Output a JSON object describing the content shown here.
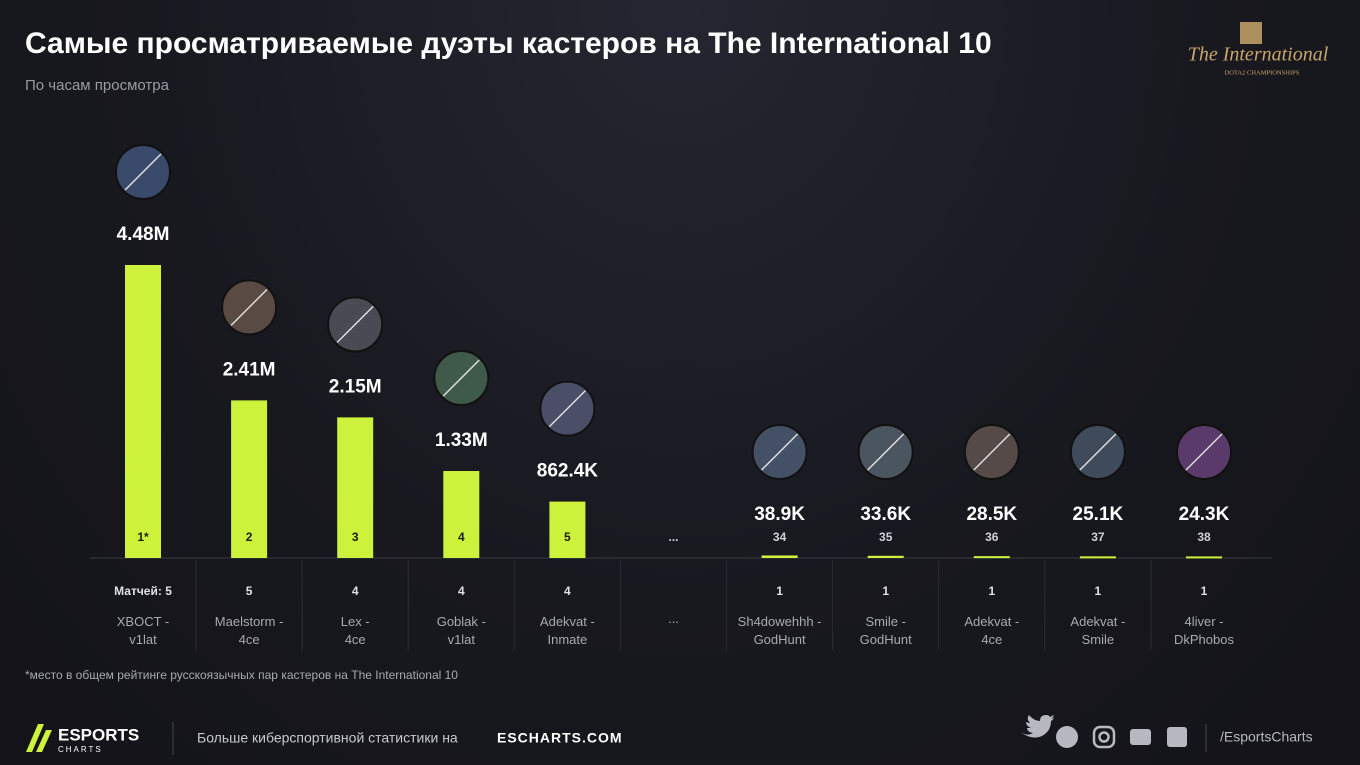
{
  "header": {
    "title": "Самые просматриваемые дуэты кастеров на The International 10",
    "subtitle": "По часам просмотра",
    "logo_title": "The International",
    "logo_subtitle": "DOTA2 CHAMPIONSHIPS"
  },
  "chart_data": {
    "type": "bar",
    "categories": [
      "XBOCT -\nv1lat",
      "Maelstorm -\n4ce",
      "Lex -\n4ce",
      "Goblak -\nv1lat",
      "Adekvat -\nInmate",
      "...",
      "Sh4dowehhh -\nGodHunt",
      "Smile -\nGodHunt",
      "Adekvat -\n4ce",
      "Adekvat -\nSmile",
      "4liver -\nDkPhobos"
    ],
    "values": [
      4480000,
      2410000,
      2150000,
      1330000,
      862400,
      null,
      38900,
      33600,
      28500,
      25100,
      24300
    ],
    "value_labels": [
      "4.48M",
      "2.41M",
      "2.15M",
      "1.33M",
      "862.4K",
      null,
      "38.9K",
      "33.6K",
      "28.5K",
      "25.1K",
      "24.3K"
    ],
    "ranks": [
      "1*",
      2,
      3,
      4,
      5,
      "...",
      34,
      35,
      36,
      37,
      38
    ],
    "matches_label": "Матчей:",
    "matches": [
      5,
      5,
      4,
      4,
      4,
      null,
      1,
      1,
      1,
      1,
      1
    ],
    "color": "#cdf23c",
    "ylim": [
      0,
      4500000
    ]
  },
  "footnote": "*место в общем рейтинге русскоязычных пар кастеров на The International 10",
  "footer": {
    "brand": "ESPORTS",
    "brand_sub": "CHARTS",
    "promo": "Больше киберспортивной статистики на",
    "site": "ESCHARTS.COM",
    "handle": "/EsportsCharts"
  }
}
